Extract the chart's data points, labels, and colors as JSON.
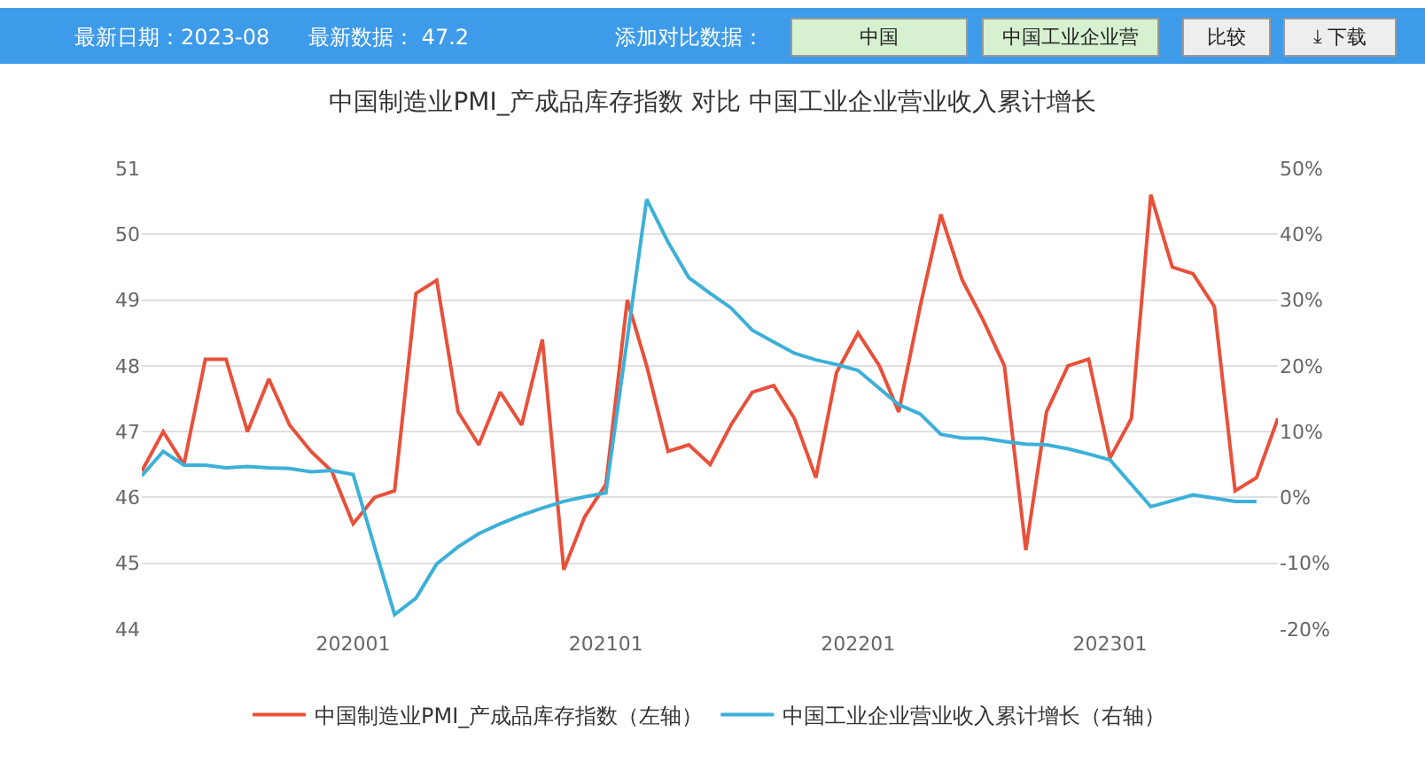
{
  "chart_data": {
    "type": "line",
    "title": "中国制造业PMI_产成品库存指数 对比 中国工业企业营业收入累计增长",
    "annotations": [
      "最新日期：2023-08",
      "最新数据： 47.2",
      "添加对比数据：",
      "中国",
      "中国工业企业营",
      "比较",
      "⤓ 下载"
    ],
    "x": [
      "2019-03",
      "2019-04",
      "2019-05",
      "2019-06",
      "2019-07",
      "2019-08",
      "2019-09",
      "2019-10",
      "2019-11",
      "2019-12",
      "2020-01",
      "2020-02",
      "2020-03",
      "2020-04",
      "2020-05",
      "2020-06",
      "2020-07",
      "2020-08",
      "2020-09",
      "2020-10",
      "2020-11",
      "2020-12",
      "2021-01",
      "2021-02",
      "2021-03",
      "2021-04",
      "2021-05",
      "2021-06",
      "2021-07",
      "2021-08",
      "2021-09",
      "2021-10",
      "2021-11",
      "2021-12",
      "2022-01",
      "2022-02",
      "2022-03",
      "2022-04",
      "2022-05",
      "2022-06",
      "2022-07",
      "2022-08",
      "2022-09",
      "2022-10",
      "2022-11",
      "2022-12",
      "2023-01",
      "2023-02",
      "2023-03",
      "2023-04",
      "2023-05",
      "2023-06",
      "2023-07",
      "2023-08",
      "2023-09"
    ],
    "series": [
      {
        "name": "中国制造业PMI_产成品库存指数（左轴）",
        "color": "#e8503a",
        "values": [
          46.4,
          47.0,
          46.5,
          48.1,
          48.1,
          47.0,
          47.8,
          47.1,
          46.7,
          46.4,
          45.6,
          46.0,
          46.1,
          49.1,
          49.3,
          47.3,
          46.8,
          47.6,
          47.1,
          48.4,
          44.9,
          45.7,
          46.2,
          49.0,
          48.0,
          46.7,
          46.8,
          46.5,
          47.1,
          47.6,
          47.7,
          47.2,
          46.3,
          47.9,
          48.5,
          48.0,
          47.3,
          48.9,
          50.3,
          49.3,
          48.7,
          48.0,
          45.2,
          47.3,
          48.0,
          48.1,
          46.6,
          47.2,
          50.6,
          49.5,
          49.4,
          48.9,
          46.1,
          46.3,
          47.2
        ]
      },
      {
        "name": "中国工业企业营业收入累计增长（右轴）",
        "color": "#3cb0d8",
        "axis": "y2",
        "values": [
          3.3,
          7.0,
          4.9,
          4.9,
          4.5,
          4.7,
          4.5,
          4.4,
          3.9,
          4.1,
          3.5,
          null,
          -17.8,
          -15.3,
          -10.1,
          -7.5,
          -5.5,
          -4.0,
          -2.7,
          -1.6,
          -0.6,
          0.1,
          0.7,
          null,
          45.3,
          38.8,
          33.4,
          31.0,
          28.8,
          25.4,
          23.6,
          21.9,
          20.9,
          20.2,
          19.3,
          null,
          14.1,
          12.7,
          9.6,
          9.0,
          9.0,
          8.5,
          8.1,
          8.0,
          7.4,
          6.6,
          5.7,
          null,
          -1.4,
          -0.5,
          0.4,
          -0.1,
          -0.6,
          -0.6,
          null
        ]
      }
    ],
    "xlim": [
      "2019-03",
      "2023-09"
    ],
    "xticks": [
      {
        "value": "2020-01",
        "label": "202001"
      },
      {
        "value": "2021-01",
        "label": "202101"
      },
      {
        "value": "2022-01",
        "label": "202201"
      },
      {
        "value": "2023-01",
        "label": "202301"
      }
    ],
    "ylim": [
      44,
      51
    ],
    "yticks": [
      44,
      45,
      46,
      47,
      48,
      49,
      50,
      51
    ],
    "y2lim": [
      -20,
      50
    ],
    "y2ticks": [
      {
        "value": -20,
        "label": "-20%"
      },
      {
        "value": -10,
        "label": "-10%"
      },
      {
        "value": 0,
        "label": "0%"
      },
      {
        "value": 10,
        "label": "10%"
      },
      {
        "value": 20,
        "label": "20%"
      },
      {
        "value": 30,
        "label": "30%"
      },
      {
        "value": 40,
        "label": "40%"
      },
      {
        "value": 50,
        "label": "50%"
      }
    ],
    "grid": "y",
    "legend": "bottom",
    "marker": "none",
    "line_style": "solid"
  }
}
